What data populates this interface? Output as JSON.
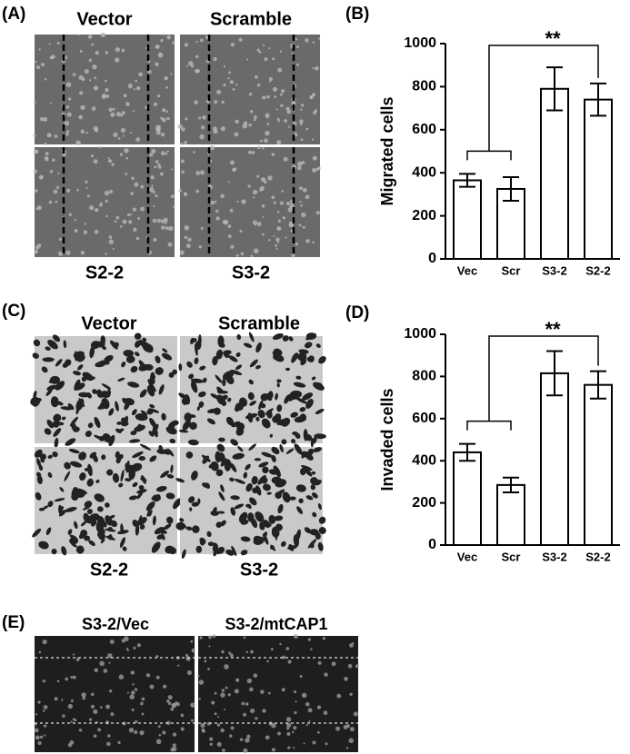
{
  "figure": {
    "panel_a": {
      "label": "(A)",
      "top_labels": [
        "Vector",
        "Scramble"
      ],
      "bottom_labels": [
        "S2-2",
        "S3-2"
      ]
    },
    "panel_c": {
      "label": "(C)",
      "top_labels": [
        "Vector",
        "Scramble"
      ],
      "bottom_labels": [
        "S2-2",
        "S3-2"
      ]
    },
    "panel_e": {
      "label": "(E)",
      "top_labels": [
        "S3-2/Vec",
        "S3-2/mtCAP1"
      ]
    }
  },
  "chart_data": [
    {
      "type": "bar",
      "panel_label": "(B)",
      "ylabel": "Migrated cells",
      "categories": [
        "Vec",
        "Scr",
        "S3-2",
        "S2-2"
      ],
      "values": [
        365,
        325,
        790,
        740
      ],
      "errors": [
        30,
        55,
        100,
        75
      ],
      "color": "#ffffff",
      "annotation": "**",
      "ylim": [
        0,
        1000
      ],
      "yticks": [
        0,
        200,
        400,
        600,
        800,
        1000
      ]
    },
    {
      "type": "bar",
      "panel_label": "(D)",
      "ylabel": "Invaded cells",
      "categories": [
        "Vec",
        "Scr",
        "S3-2",
        "S2-2"
      ],
      "values": [
        440,
        285,
        815,
        760
      ],
      "errors": [
        40,
        35,
        105,
        65
      ],
      "color": "#ffffff",
      "annotation": "**",
      "ylim": [
        0,
        1000
      ],
      "yticks": [
        0,
        200,
        400,
        600,
        800,
        1000
      ]
    }
  ]
}
